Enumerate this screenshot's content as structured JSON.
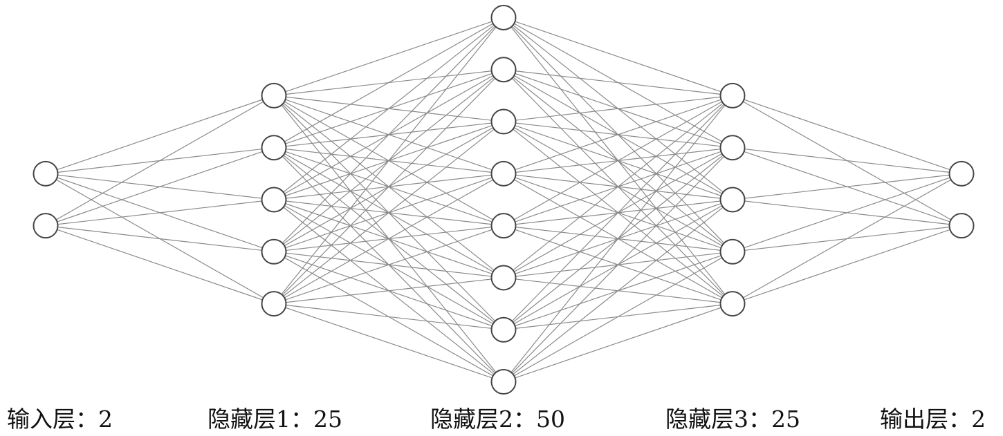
{
  "diagram": {
    "layers": [
      {
        "label": "输入层：2",
        "visible_nodes": 2
      },
      {
        "label": "隐藏层1：25",
        "visible_nodes": 5
      },
      {
        "label": "隐藏层2：50",
        "visible_nodes": 8
      },
      {
        "label": "隐藏层3：25",
        "visible_nodes": 5
      },
      {
        "label": "输出层：2",
        "visible_nodes": 2
      }
    ],
    "colors": {
      "edge": "#8a8a8a",
      "node_stroke": "#444444",
      "node_fill": "#ffffff",
      "text": "#111111"
    }
  }
}
